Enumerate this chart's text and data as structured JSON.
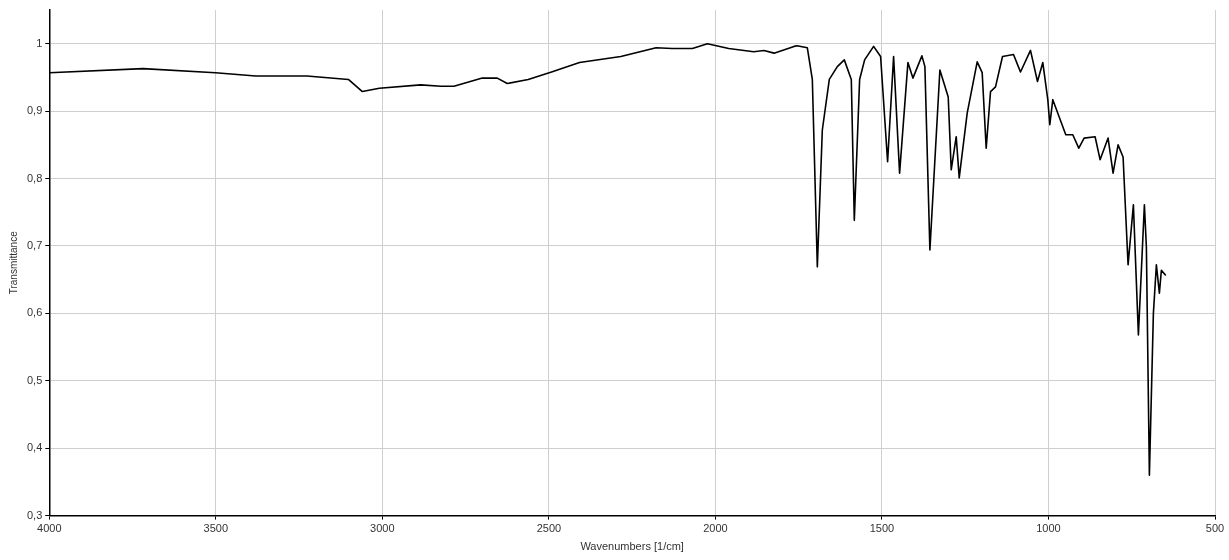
{
  "chart_data": {
    "type": "line",
    "xlabel": "Wavenumbers [1/cm]",
    "ylabel": "Transmittance",
    "xlim": [
      4000,
      500
    ],
    "xticks": [
      4000,
      3500,
      3000,
      2500,
      2000,
      1500,
      1000,
      500
    ],
    "ylim": [
      0.3,
      1.05
    ],
    "yticks": [
      {
        "value": 0.3,
        "label": "0,3"
      },
      {
        "value": 0.4,
        "label": "0,4"
      },
      {
        "value": 0.5,
        "label": "0,5"
      },
      {
        "value": 0.6,
        "label": "0,6"
      },
      {
        "value": 0.7,
        "label": "0,7"
      },
      {
        "value": 0.8,
        "label": "0,8"
      },
      {
        "value": 0.9,
        "label": "0,9"
      },
      1
    ],
    "grid": true,
    "legend": false,
    "marker": "none",
    "line_style": "solid",
    "series": [
      {
        "color": "#000000",
        "x": [
          4000,
          3719,
          3501,
          3380,
          3226,
          3102,
          3060,
          3009,
          2885,
          2824,
          2785,
          2700,
          2655,
          2625,
          2562,
          2492,
          2408,
          2284,
          2178,
          2130,
          2069,
          2024,
          1960,
          1885,
          1854,
          1824,
          1764,
          1755,
          1724,
          1709,
          1694,
          1679,
          1658,
          1634,
          1613,
          1592,
          1583,
          1567,
          1552,
          1525,
          1504,
          1483,
          1465,
          1447,
          1422,
          1407,
          1380,
          1371,
          1356,
          1326,
          1301,
          1292,
          1277,
          1268,
          1244,
          1214,
          1199,
          1187,
          1174,
          1159,
          1138,
          1105,
          1084,
          1054,
          1033,
          1017,
          1002,
          996,
          987,
          948,
          927,
          909,
          893,
          860,
          845,
          821,
          806,
          791,
          776,
          761,
          745,
          730,
          712,
          706,
          697,
          685,
          676,
          667,
          661,
          649
        ],
        "values": [
          0.957,
          0.963,
          0.957,
          0.952,
          0.952,
          0.947,
          0.929,
          0.934,
          0.939,
          0.937,
          0.937,
          0.949,
          0.949,
          0.941,
          0.947,
          0.958,
          0.972,
          0.981,
          0.994,
          0.993,
          0.993,
          1.0,
          0.993,
          0.988,
          0.99,
          0.986,
          0.996,
          0.997,
          0.994,
          0.947,
          0.669,
          0.872,
          0.947,
          0.966,
          0.976,
          0.947,
          0.738,
          0.947,
          0.976,
          0.996,
          0.981,
          0.825,
          0.981,
          0.808,
          0.972,
          0.949,
          0.982,
          0.966,
          0.694,
          0.961,
          0.921,
          0.813,
          0.862,
          0.801,
          0.897,
          0.973,
          0.957,
          0.845,
          0.929,
          0.936,
          0.981,
          0.984,
          0.958,
          0.99,
          0.944,
          0.972,
          0.917,
          0.88,
          0.917,
          0.865,
          0.865,
          0.845,
          0.86,
          0.862,
          0.828,
          0.86,
          0.808,
          0.85,
          0.832,
          0.672,
          0.761,
          0.568,
          0.761,
          0.698,
          0.36,
          0.6,
          0.672,
          0.63,
          0.664,
          0.657
        ]
      }
    ]
  }
}
